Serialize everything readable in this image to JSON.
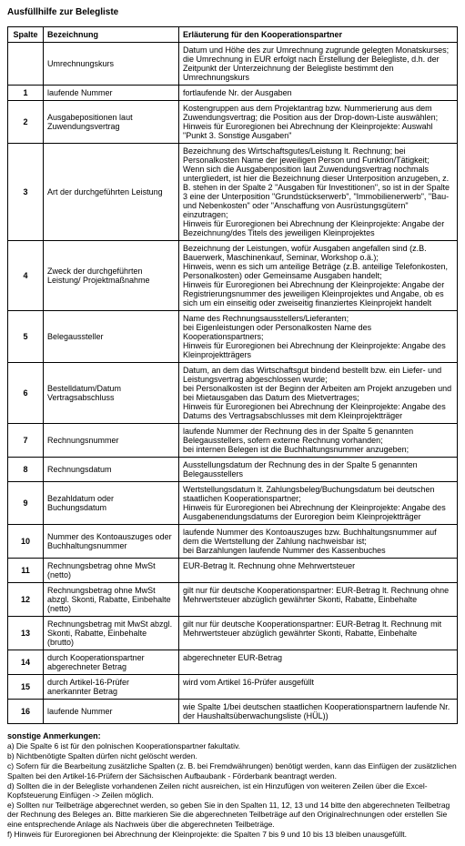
{
  "title": "Ausfüllhilfe zur Belegliste",
  "headers": {
    "spalte": "Spalte",
    "bezeichnung": "Bezeichnung",
    "erlaeuterung": "Erläuterung für den Kooperationspartner"
  },
  "rows": [
    {
      "num": "",
      "bez": "Umrechnungskurs",
      "erl": "Datum und Höhe des zur Umrechnung zugrunde gelegten Monatskurses; die Umrechnung in EUR erfolgt nach Erstellung der Belegliste, d.h. der Zeitpunkt der Unterzeichnung der Belegliste bestimmt den Umrechnungskurs"
    },
    {
      "num": "1",
      "bez": "laufende Nummer",
      "erl": "fortlaufende Nr. der Ausgaben"
    },
    {
      "num": "2",
      "bez": "Ausgabepositionen laut Zuwendungsvertrag",
      "erl": "Kostengruppen aus dem Projektantrag bzw. Nummerierung aus dem Zuwendungsvertrag; die Position aus der Drop-down-Liste auswählen;\nHinweis für Euroregionen bei Abrechnung der Kleinprojekte: Auswahl \"Punkt 3. Sonstige Ausgaben\""
    },
    {
      "num": "3",
      "bez": "Art der durchgeführten Leistung",
      "erl": "Bezeichnung des Wirtschaftsgutes/Leistung lt. Rechnung; bei Personalkosten Name der jeweiligen Person und Funktion/Tätigkeit;\nWenn sich die Ausgabenposition laut Zuwendungsvertrag nochmals untergliedert, ist hier die Bezeichnung dieser Unterposition anzugeben, z. B. stehen in der Spalte 2 \"Ausgaben für Investitionen\", so ist in der Spalte 3 eine der Unterposition \"Grundstückserwerb\", \"Immobilienerwerb\", \"Bau- und Nebenkosten\" oder \"Anschaffung von Ausrüstungsgütern\" einzutragen;\nHinweis für Euroregionen bei Abrechnung der Kleinprojekte: Angabe der Bezeichnung/des Titels des jeweiligen Kleinprojektes"
    },
    {
      "num": "4",
      "bez": "Zweck der durchgeführten Leistung/ Projektmaßnahme",
      "erl": "Bezeichnung der Leistungen, wofür Ausgaben angefallen sind (z.B. Bauerwerk, Maschinenkauf, Seminar, Workshop o.ä.);\nHinweis, wenn es sich um anteilige Beträge (z.B. anteilige Telefonkosten, Personalkosten) oder Gemeinsame Ausgaben handelt;\nHinweis für Euroregionen bei Abrechnung der Kleinprojekte: Angabe der Registrierungsnummer des jeweiligen Kleinprojektes und Angabe, ob es sich um ein einseitig oder zweiseitig finanziertes Kleinprojekt handelt"
    },
    {
      "num": "5",
      "bez": "Belegaussteller",
      "erl": "Name des Rechnungsausstellers/Lieferanten;\nbei Eigenleistungen oder Personalkosten Name des Kooperationspartners;\nHinweis für Euroregionen bei Abrechnung der Kleinprojekte: Angabe des Kleinprojektträgers"
    },
    {
      "num": "6",
      "bez": "Bestelldatum/Datum Vertragsabschluss",
      "erl": "Datum, an dem das Wirtschaftsgut bindend bestellt bzw. ein Liefer- und Leistungsvertrag abgeschlossen wurde;\nbei Personalkosten ist der Beginn der Arbeiten am Projekt anzugeben und bei Mietausgaben das Datum des Mietvertrages;\nHinweis für Euroregionen bei Abrechnung der Kleinprojekte: Angabe des Datums des Vertragsabschlusses mit dem Kleinprojektträger"
    },
    {
      "num": "7",
      "bez": "Rechnungsnummer",
      "erl": "laufende Nummer der Rechnung des in der Spalte 5 genannten Belegausstellers, sofern externe Rechnung vorhanden;\nbei internen Belegen ist die Buchhaltungsnummer anzugeben;"
    },
    {
      "num": "8",
      "bez": "Rechnungsdatum",
      "erl": "Ausstellungsdatum der Rechnung des in der Spalte 5 genannten Belegausstellers"
    },
    {
      "num": "9",
      "bez": "Bezahldatum oder Buchungsdatum",
      "erl": "Wertstellungsdatum lt. Zahlungsbeleg/Buchungsdatum bei deutschen staatlichen Kooperationspartner;\nHinweis für Euroregionen bei Abrechnung der Kleinprojekte: Angabe des Ausgabenendungsdatums der Euroregion beim Kleinprojektträger"
    },
    {
      "num": "10",
      "bez": "Nummer des Kontoauszuges oder Buchhaltungsnummer",
      "erl": "laufende Nummer des Kontoauszuges bzw. Buchhaltungsnummer auf dem die Wertstellung der Zahlung nachweisbar ist;\nbei Barzahlungen laufende Nummer des Kassenbuches"
    },
    {
      "num": "11",
      "bez": "Rechnungsbetrag ohne MwSt (netto)",
      "erl": "EUR-Betrag lt. Rechnung ohne Mehrwertsteuer"
    },
    {
      "num": "12",
      "bez": "Rechnungsbetrag ohne MwSt abzgl. Skonti, Rabatte, Einbehalte (netto)",
      "erl": "gilt nur für deutsche Kooperationspartner: EUR-Betrag lt. Rechnung ohne Mehrwertsteuer abzüglich gewährter Skonti, Rabatte, Einbehalte"
    },
    {
      "num": "13",
      "bez": "Rechnungsbetrag mit MwSt abzgl. Skonti, Rabatte, Einbehalte (brutto)",
      "erl": "gilt nur für deutsche Kooperationspartner: EUR-Betrag lt. Rechnung mit Mehrwertsteuer abzüglich gewährter Skonti, Rabatte, Einbehalte"
    },
    {
      "num": "14",
      "bez": "durch Kooperationspartner abgerechneter Betrag",
      "erl": "abgerechneter EUR-Betrag"
    },
    {
      "num": "15",
      "bez": "durch Artikel-16-Prüfer anerkannter Betrag",
      "erl": "wird vom Artikel 16-Prüfer ausgefüllt"
    },
    {
      "num": "16",
      "bez": "laufende Nummer",
      "erl": "wie Spalte 1/bei deutschen staatlichen Kooperationspartnern laufende Nr. der Haushaltsüberwachungsliste (HÜL))"
    }
  ],
  "notes_title": "sonstige Anmerkungen:",
  "notes": [
    "a) Die Spalte 6 ist für den polnischen Kooperationspartner fakultativ.",
    "b) Nichtbenötigte Spalten dürfen nicht gelöscht werden.",
    "c) Sofern für die Bearbeitung zusätzliche Spalten (z. B. bei Fremdwährungen) benötigt werden, kann das Einfügen der zusätzlichen Spalten bei den Artikel-16-Prüfern der Sächsischen Aufbaubank - Förderbank beantragt werden.",
    "d) Sollten die in der Belegliste vorhandenen Zeilen nicht ausreichen, ist ein Hinzufügen von weiteren Zeilen über die Excel-Kopfsteuerung Einfügen -> Zeilen möglich.",
    "e) Sollten nur Teilbeträge abgerechnet werden, so geben Sie in den Spalten 11, 12, 13 und 14 bitte den abgerechneten Teilbetrag der Rechnung des Beleges an. Bitte markieren Sie die abgerechneten Teilbeträge auf den Originalrechnungen oder erstellen Sie eine entsprechende Anlage als Nachweis über die abgerechneten Teilbeträge.",
    "f) Hinweis für Euroregionen bei Abrechnung der Kleinprojekte: die Spalten 7 bis 9 und 10 bis 13 bleiben unausgefüllt."
  ]
}
